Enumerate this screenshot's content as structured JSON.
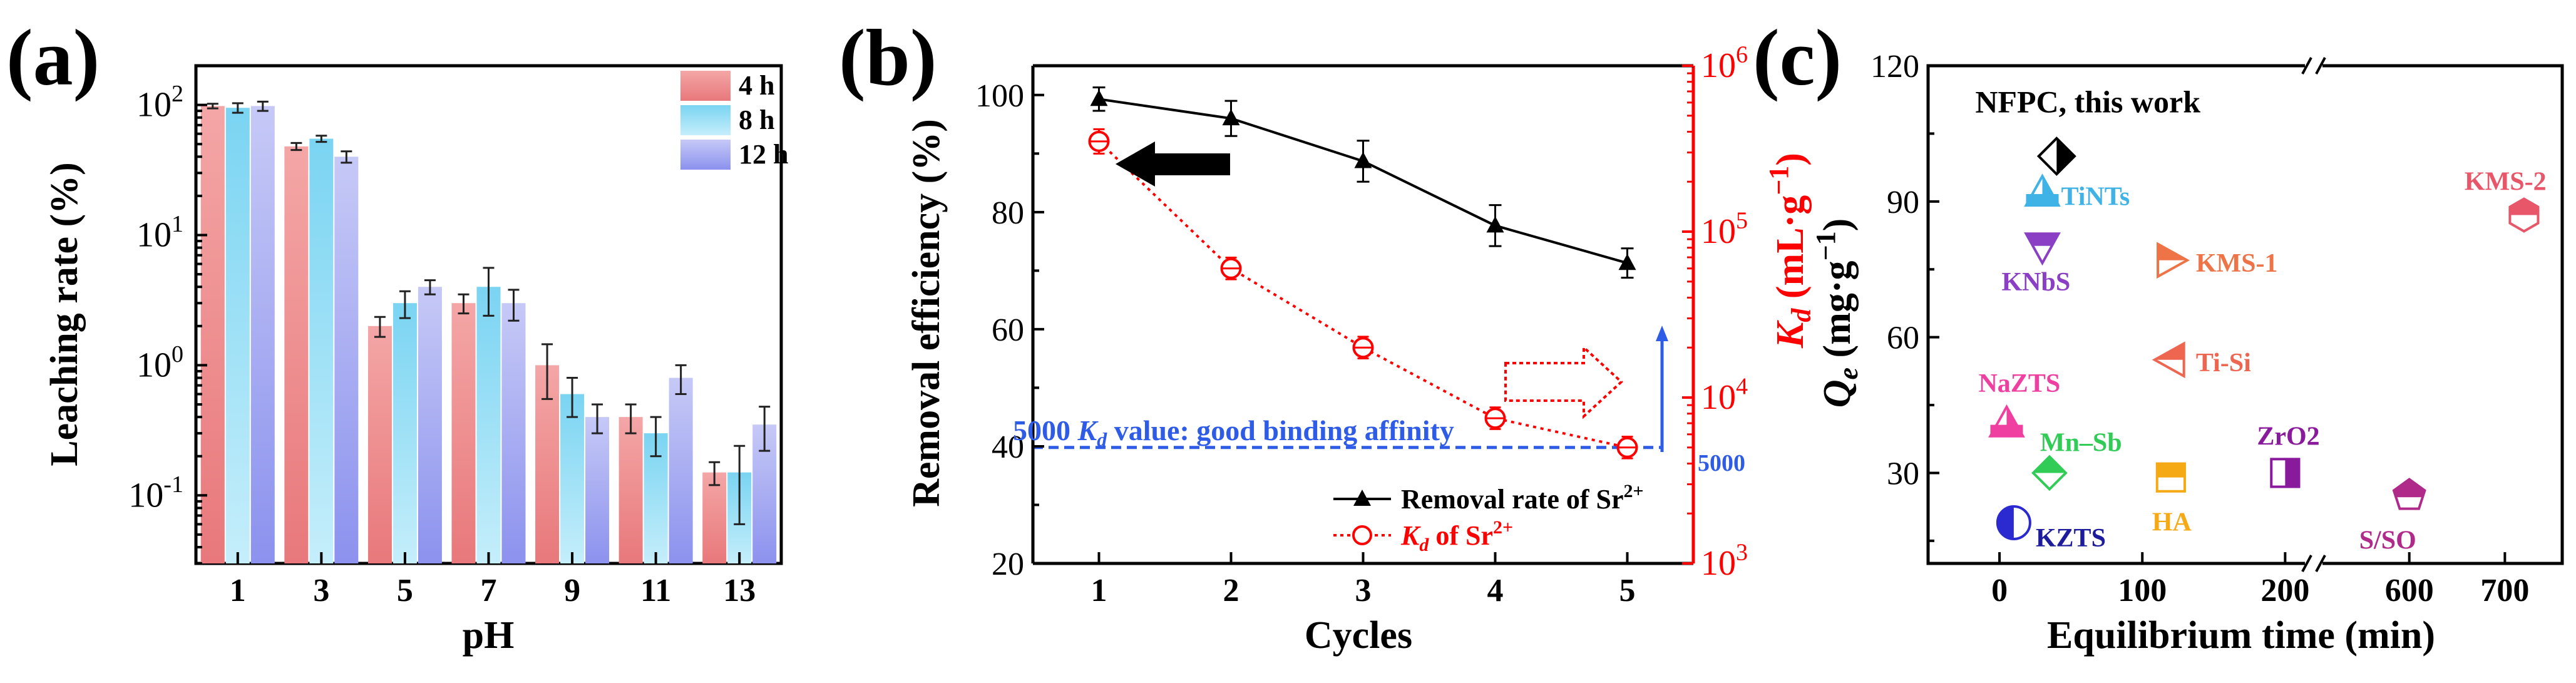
{
  "panels": {
    "a": {
      "letter": "(a)"
    },
    "b": {
      "letter": "(b)"
    },
    "c": {
      "letter": "(c)"
    }
  },
  "chart_data": [
    {
      "panel": "(a)",
      "type": "bar",
      "yscale": "log",
      "ylim": [
        0.03,
        200
      ],
      "xlabel": "pH",
      "ylabel": "Leaching rate (%)",
      "yticks": [
        {
          "value": 0.1,
          "base": "10",
          "exp": "-1"
        },
        {
          "value": 1,
          "base": "10",
          "exp": "0"
        },
        {
          "value": 10,
          "base": "10",
          "exp": "1"
        },
        {
          "value": 100,
          "base": "10",
          "exp": "2"
        }
      ],
      "categories": [
        "1",
        "3",
        "5",
        "7",
        "9",
        "11",
        "13"
      ],
      "legend_position": "top-right",
      "series": [
        {
          "name": "4 h",
          "top_color": "#f4a6a6",
          "bottom_color": "#e8787b",
          "values": [
            98,
            48,
            2.0,
            3.0,
            1.0,
            0.4,
            0.15
          ],
          "errors": [
            4,
            3,
            0.35,
            0.5,
            0.45,
            0.1,
            0.03
          ]
        },
        {
          "name": "8 h",
          "top_color": "#7ad4f2",
          "bottom_color": "#c5eefb",
          "values": [
            95,
            55,
            3.0,
            4.0,
            0.6,
            0.3,
            0.15
          ],
          "errors": [
            8,
            3,
            0.7,
            1.6,
            0.2,
            0.1,
            0.09
          ]
        },
        {
          "name": "12 h",
          "top_color": "#c6c9f6",
          "bottom_color": "#8c92ee",
          "values": [
            98,
            40,
            4.0,
            3.0,
            0.4,
            0.8,
            0.35
          ],
          "errors": [
            8,
            4,
            0.5,
            0.8,
            0.1,
            0.2,
            0.13
          ]
        }
      ]
    },
    {
      "panel": "(b)",
      "type": "line",
      "xlabel": "Cycles",
      "ylabel": "Removal efficiency (%)",
      "y2label_prefix": "K",
      "y2label_sub": "d",
      "y2label_suffix": " (mL·g",
      "y2label_exp": "−1",
      "y2label_close": ")",
      "x": [
        1,
        2,
        3,
        4,
        5
      ],
      "xlim": [
        0.5,
        5.5
      ],
      "ylim": [
        20,
        105
      ],
      "y2lim_log": [
        1000,
        1000000
      ],
      "xticks": [
        "1",
        "2",
        "3",
        "4",
        "5"
      ],
      "yticks": [
        "20",
        "40",
        "60",
        "80",
        "100"
      ],
      "y2ticks": [
        {
          "value": 1000,
          "base": "10",
          "exp": "3"
        },
        {
          "value": 10000,
          "base": "10",
          "exp": "4"
        },
        {
          "value": 100000,
          "base": "10",
          "exp": "5"
        },
        {
          "value": 1000000,
          "base": "10",
          "exp": "6"
        }
      ],
      "series": [
        {
          "name_text": "Removal rate of Sr",
          "name_sup": "2+",
          "axis": "left",
          "color": "#000000",
          "values": [
            99.3,
            96.0,
            88.7,
            77.7,
            71.3
          ],
          "errors": [
            2,
            3,
            3.5,
            3.5,
            2.5
          ]
        },
        {
          "name_text": "K",
          "name_sub": "d",
          "name_rest": " of Sr",
          "name_sup": "2+",
          "axis": "right",
          "color": "#ff0000",
          "values": [
            350000,
            60000,
            20000,
            7500,
            5000
          ],
          "errors": [
            2.5,
            1.5,
            1.5,
            1.5,
            1.5
          ]
        }
      ],
      "reference_line": {
        "value": 5000,
        "label": "5000",
        "color": "#2f5ce6"
      },
      "annotation": {
        "prefix": "5000 ",
        "k": "K",
        "sub": "d",
        "suffix": " value: good binding affinity"
      }
    },
    {
      "panel": "(c)",
      "type": "scatter",
      "xlabel": "Equilibrium time (min)",
      "ylabel_prefix": "Q",
      "ylabel_sub": "e",
      "ylabel_suffix": " (mg·g",
      "ylabel_exp": "−1",
      "ylabel_close": ")",
      "ylim": [
        10,
        120
      ],
      "broken_axis": {
        "segment1": [
          -50,
          220
        ],
        "segment2": [
          500,
          760
        ]
      },
      "xticks": [
        "0",
        "100",
        "200",
        "600",
        "700"
      ],
      "yticks": [
        "30",
        "60",
        "90",
        "120"
      ],
      "points": [
        {
          "name": "NFPC, this work",
          "x": 40,
          "y": 100,
          "color": "#000000",
          "shape": "diamond-half"
        },
        {
          "name": "TiNTs",
          "x": 30,
          "y": 92,
          "color": "#3fb2e6",
          "shape": "triangle-up"
        },
        {
          "name": "KNbS",
          "x": 30,
          "y": 80,
          "color": "#8a3fc4",
          "shape": "triangle-down"
        },
        {
          "name": "KMS-1",
          "x": 120,
          "y": 77,
          "color": "#ee7447",
          "shape": "triangle-right"
        },
        {
          "name": "KMS-2",
          "x": 720,
          "y": 87,
          "color": "#e8566a",
          "shape": "hexagon"
        },
        {
          "name": "Ti-Si",
          "x": 120,
          "y": 55,
          "color": "#ee6650",
          "shape": "triangle-left"
        },
        {
          "name": "NaZTS",
          "x": 5,
          "y": 41,
          "color": "#ef3fa0",
          "shape": "triangle-up"
        },
        {
          "name": "Mn–Sb",
          "x": 35,
          "y": 30,
          "color": "#30cc55",
          "shape": "diamond"
        },
        {
          "name": "ZrO2",
          "x": 200,
          "y": 30,
          "color": "#8a1a9c",
          "shape": "square-half"
        },
        {
          "name": "HA",
          "x": 120,
          "y": 29,
          "color": "#f5a914",
          "shape": "square"
        },
        {
          "name": "S/SO",
          "x": 600,
          "y": 25,
          "color": "#b02a8a",
          "shape": "pentagon"
        },
        {
          "name": "KZTS",
          "x": 10,
          "y": 19,
          "color": "#2a2ad0",
          "shape": "circle-half"
        }
      ]
    }
  ]
}
